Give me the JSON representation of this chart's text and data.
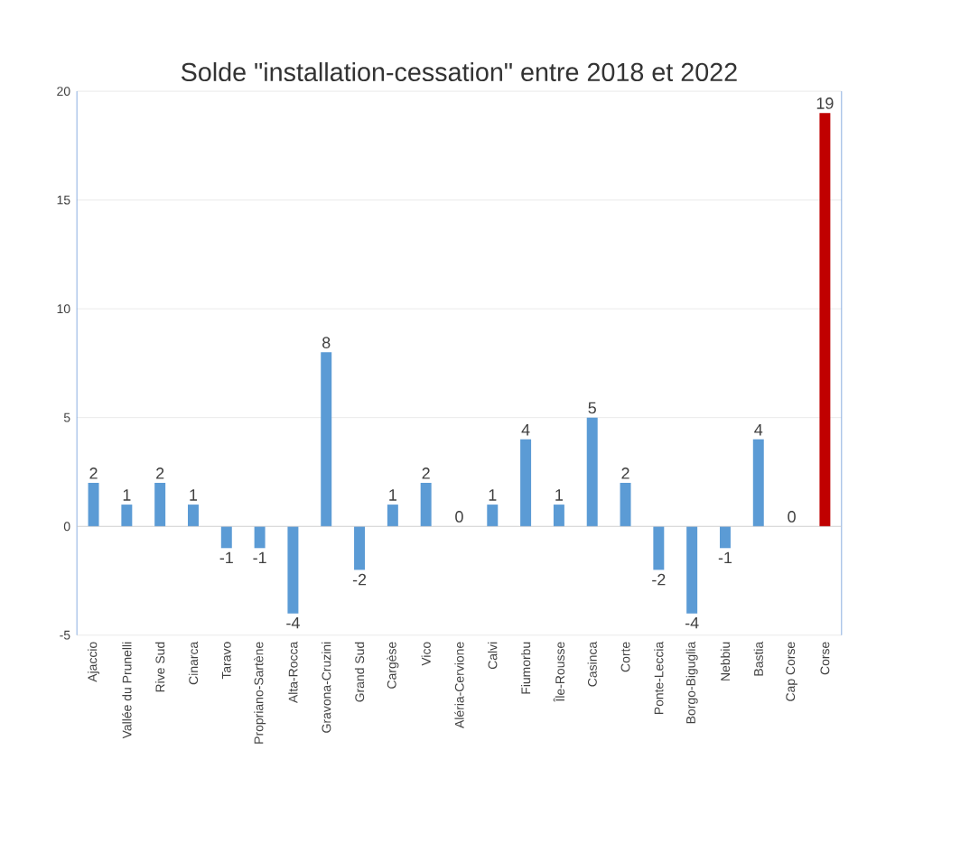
{
  "chart_data": {
    "type": "bar",
    "title": "Solde \"installation-cessation\" entre 2018 et 2022",
    "categories": [
      "Ajaccio",
      "Vallée du Prunelli",
      "Rive Sud",
      "Cinarca",
      "Taravo",
      "Propriano-Sartène",
      "Alta-Rocca",
      "Gravona-Cruzini",
      "Grand Sud",
      "Cargèse",
      "Vico",
      "Aléria-Cervione",
      "Calvi",
      "Fiumorbu",
      "Île-Rousse",
      "Casinca",
      "Corte",
      "Ponte-Leccia",
      "Borgo-Biguglia",
      "Nebbiu",
      "Bastia",
      "Cap Corse",
      "Corse"
    ],
    "values": [
      2,
      1,
      2,
      1,
      -1,
      -1,
      -4,
      8,
      -2,
      1,
      2,
      0,
      1,
      4,
      1,
      5,
      2,
      -2,
      -4,
      -1,
      4,
      0,
      19
    ],
    "colors": [
      "#5b9bd5",
      "#5b9bd5",
      "#5b9bd5",
      "#5b9bd5",
      "#5b9bd5",
      "#5b9bd5",
      "#5b9bd5",
      "#5b9bd5",
      "#5b9bd5",
      "#5b9bd5",
      "#5b9bd5",
      "#5b9bd5",
      "#5b9bd5",
      "#5b9bd5",
      "#5b9bd5",
      "#5b9bd5",
      "#5b9bd5",
      "#5b9bd5",
      "#5b9bd5",
      "#5b9bd5",
      "#5b9bd5",
      "#5b9bd5",
      "#c00000"
    ],
    "ylim": [
      -5,
      20
    ],
    "yticks": [
      -5,
      0,
      5,
      10,
      15,
      20
    ],
    "grid": "y",
    "data_labels": true
  }
}
